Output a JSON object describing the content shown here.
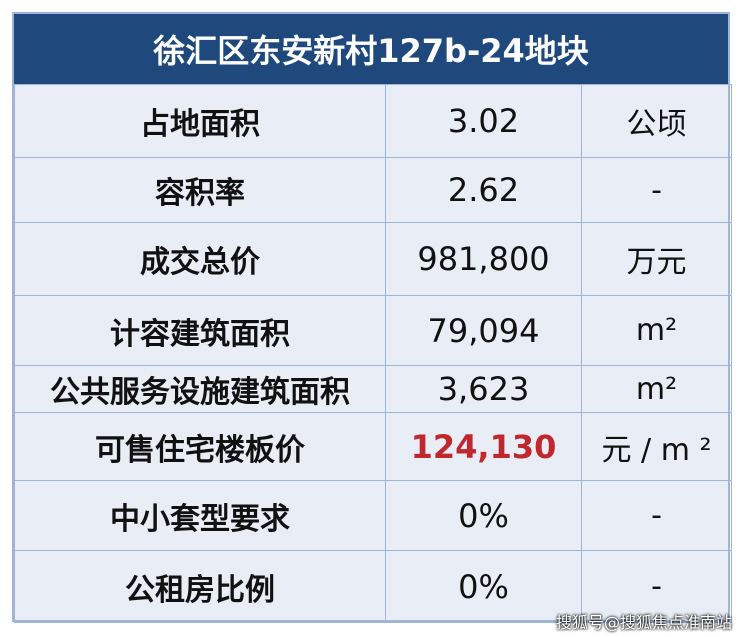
{
  "title": "徐汇区东安新村127b-24地块",
  "table": {
    "rows": [
      [
        "占地面积",
        "3.02",
        "公顷"
      ],
      [
        "容积率",
        "2.62",
        "-"
      ],
      [
        "成交总价",
        "981,800",
        "万元"
      ],
      [
        "计容建筑面积",
        "79,094",
        "m²"
      ],
      [
        "公共服务设施建筑面积",
        "3,623",
        "m²"
      ],
      [
        "可售住宅楼板价",
        "124,130",
        "元 / m ²"
      ],
      [
        "中小套型要求",
        "0%",
        "-"
      ],
      [
        "公租房比例",
        "0%",
        "-"
      ]
    ]
  },
  "watermark": "搜狐号@搜狐焦点淮南站"
}
